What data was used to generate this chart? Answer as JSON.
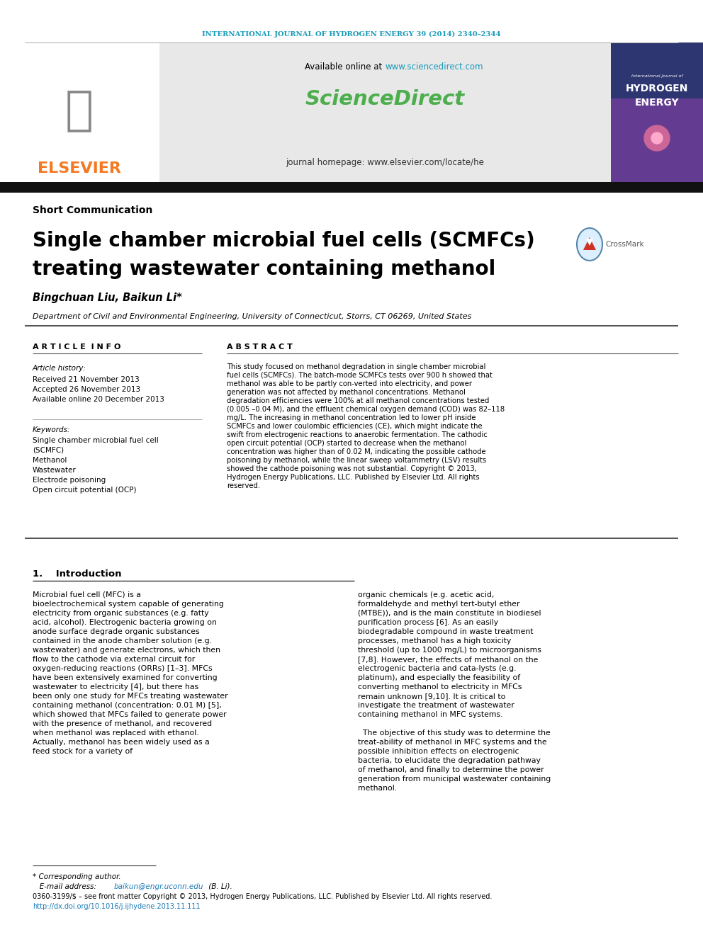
{
  "journal_header": "INTERNATIONAL JOURNAL OF HYDROGEN ENERGY 39 (2014) 2340–2344",
  "journal_header_color": "#1a9bba",
  "available_online_pre": "Available online at ",
  "sciencedirect_url": "www.sciencedirect.com",
  "sciencedirect_url_color": "#1a9bba",
  "sciencedirect_logo_text": "ScienceDirect",
  "sciencedirect_logo_color": "#4cae4c",
  "journal_homepage_text": "journal homepage: www.elsevier.com/locate/he",
  "elsevier_text": "ELSEVIER",
  "elsevier_color": "#f47920",
  "article_type": "Short Communication",
  "title_line1": "Single chamber microbial fuel cells (SCMFCs)",
  "title_line2": "treating wastewater containing methanol",
  "authors": "Bingchuan Liu, Baikun Li*",
  "affiliation": "Department of Civil and Environmental Engineering, University of Connecticut, Storrs, CT 06269, United States",
  "article_info_title": "A R T I C L E  I N F O",
  "article_history_label": "Article history:",
  "received": "Received 21 November 2013",
  "accepted": "Accepted 26 November 2013",
  "available_online": "Available online 20 December 2013",
  "keywords_label": "Keywords:",
  "keywords": [
    "Single chamber microbial fuel cell",
    "(SCMFC)",
    "Methanol",
    "Wastewater",
    "Electrode poisoning",
    "Open circuit potential (OCP)"
  ],
  "abstract_title": "A B S T R A C T",
  "abstract_text": "This study focused on methanol degradation in single chamber microbial fuel cells (SCMFCs). The batch-mode SCMFCs tests over 900 h showed that methanol was able to be partly con-verted into electricity, and power generation was not affected by methanol concentrations. Methanol degradation efficiencies were 100% at all methanol concentrations tested (0.005 –0.04 M), and the effluent chemical oxygen demand (COD) was 82–118 mg/L. The increasing in methanol concentration led to lower pH inside SCMFCs and lower coulombic efficiencies (CE), which might indicate the swift from electrogenic reactions to anaerobic fermentation. The cathodic open circuit potential (OCP) started to decrease when the methanol concentration was higher than of 0.02 M, indicating the possible cathode poisoning by methanol, while the linear sweep voltammetry (LSV) results showed the cathode poisoning was not substantial. Copyright © 2013, Hydrogen Energy Publications, LLC. Published by Elsevier Ltd. All rights reserved.",
  "intro_section": "1.    Introduction",
  "intro_col1_text": "Microbial fuel cell (MFC) is a bioelectrochemical system capable of generating electricity from organic substances (e.g. fatty acid, alcohol). Electrogenic bacteria growing on anode surface degrade organic substances contained in the anode chamber solution (e.g. wastewater) and generate electrons, which then flow to the cathode via external circuit for oxygen-reducing reactions (ORRs) [1–3]. MFCs have been extensively examined for converting wastewater to electricity [4], but there has been only one study for MFCs treating wastewater containing methanol (concentration: 0.01 M) [5], which showed that MFCs failed to generate power with the presence of methanol, and recovered when methanol was replaced with ethanol. Actually, methanol has been widely used as a feed stock for a variety of",
  "intro_col2_text": "organic chemicals (e.g. acetic acid, formaldehyde and methyl tert-butyl ether (MTBE)), and is the main constitute in biodiesel purification process [6]. As an easily biodegradable compound in waste treatment processes, methanol has a high toxicity threshold (up to 1000 mg/L) to microorganisms [7,8]. However, the effects of methanol on the electrogenic bacteria and cata-lysts (e.g. platinum), and especially the feasibility of converting methanol to electricity in MFCs remain unknown [9,10]. It is critical to investigate the treatment of wastewater containing methanol in MFC systems.\n    The objective of this study was to determine the treat-ability of methanol in MFC systems and the possible inhibition effects on electrogenic bacteria, to elucidate the degradation pathway of methanol, and finally to determine the power generation from municipal wastewater containing methanol.",
  "footnote_star": "* Corresponding author.",
  "footnote_email_pre": "   E-mail address: ",
  "footnote_email_link": "baikun@engr.uconn.edu",
  "footnote_email_post": " (B. Li).",
  "footnote_email_color": "#1a7bb8",
  "footnote_issn": "0360-3199/$ – see front matter Copyright © 2013, Hydrogen Energy Publications, LLC. Published by Elsevier Ltd. All rights reserved.",
  "footnote_doi": "http://dx.doi.org/10.1016/j.ijhydene.2013.11.111",
  "footnote_doi_color": "#1a7bb8",
  "bg_white": "#ffffff",
  "bg_gray": "#e8e8e8",
  "black": "#000000",
  "dark_gray": "#333333",
  "separator_color": "#666666",
  "black_bar": "#111111"
}
